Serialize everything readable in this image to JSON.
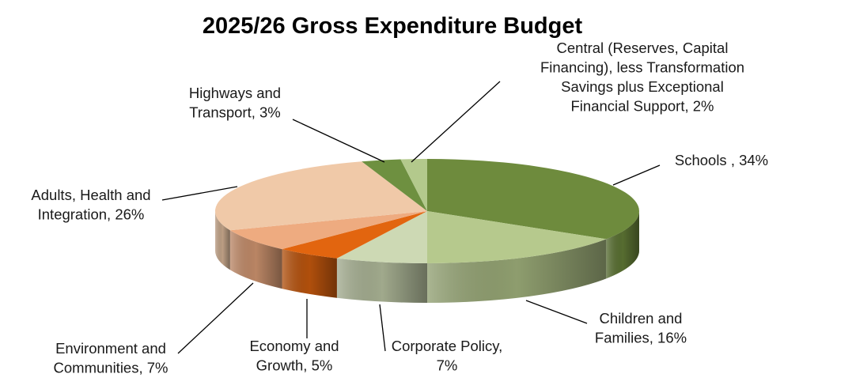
{
  "chart_data": {
    "type": "pie",
    "title": "2025/26 Gross Expenditure Budget",
    "slices": [
      {
        "name": "Schools",
        "value": 34,
        "color": "#6e8b3d",
        "label_lines": [
          "Schools , 34%"
        ]
      },
      {
        "name": "Children and Families",
        "value": 16,
        "color": "#b6c98d",
        "label_lines": [
          "Children and",
          "Families, 16%"
        ]
      },
      {
        "name": "Corporate Policy",
        "value": 7,
        "color": "#cdd9b4",
        "label_lines": [
          "Corporate Policy,",
          "7%"
        ]
      },
      {
        "name": "Economy and Growth",
        "value": 5,
        "color": "#e2650f",
        "label_lines": [
          "Economy and",
          "Growth, 5%"
        ]
      },
      {
        "name": "Environment and Communities",
        "value": 7,
        "color": "#eeab80",
        "label_lines": [
          "Environment and",
          "Communities, 7%"
        ]
      },
      {
        "name": "Adults, Health and Integration",
        "value": 26,
        "color": "#f0c9a8",
        "label_lines": [
          "Adults, Health and",
          "Integration, 26%"
        ]
      },
      {
        "name": "Highways and Transport",
        "value": 3,
        "color": "#6e9040",
        "label_lines": [
          "Highways and",
          "Transport, 3%"
        ]
      },
      {
        "name": "Central (Reserves, Capital Financing), less Transformation Savings plus Exceptional Financial Support",
        "value": 2,
        "color": "#b3c98c",
        "label_lines": [
          "Central (Reserves, Capital",
          "Financing), less Transformation",
          "Savings plus Exceptional",
          "Financial Support, 2%"
        ]
      }
    ],
    "legend": "none",
    "style": "3d-pie"
  }
}
